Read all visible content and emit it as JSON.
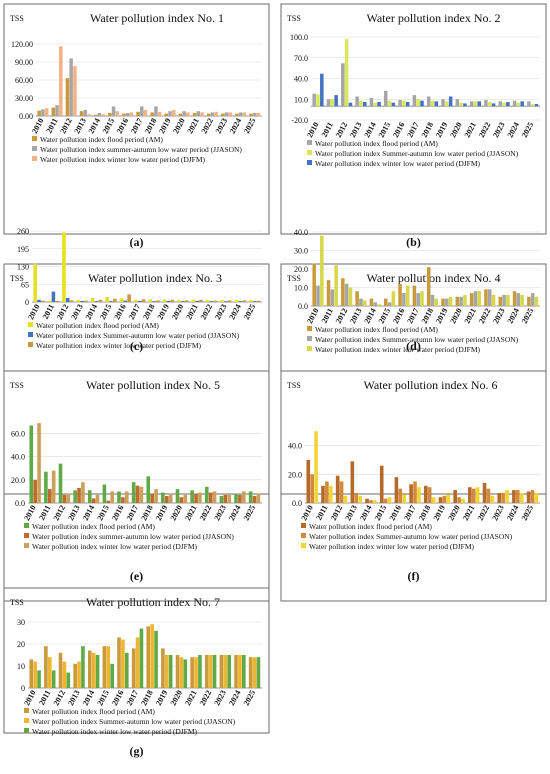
{
  "colors": {
    "panel_border": "#6b6b6b",
    "gridline": "#d9d9d9",
    "axis": "#7f7f7f"
  },
  "chart_data": [
    {
      "type": "bar",
      "panel_label": "(a)",
      "title": "Water pollution index No. 1",
      "ylabel": "TSS",
      "ylim": [
        0,
        120
      ],
      "yticks": [
        "0.00",
        "30.00",
        "60.00",
        "90.00",
        "120.00"
      ],
      "categories": [
        "2010",
        "2011",
        "2012",
        "2013",
        "2014",
        "2015",
        "2016",
        "2017",
        "2018",
        "2019",
        "2020",
        "2021",
        "2022",
        "2023",
        "2024",
        "2025"
      ],
      "series": [
        {
          "name": "Water pollution index flood period (AM)",
          "color": "#c89a3c",
          "values": [
            9,
            14,
            63,
            8,
            2,
            5,
            4,
            7,
            6,
            4,
            4,
            5,
            4,
            4,
            4,
            4
          ]
        },
        {
          "name": "Water pollution index summer-autumn low water period (JJASON)",
          "color": "#a6a6a6",
          "values": [
            11,
            18,
            96,
            10,
            5,
            16,
            5,
            16,
            16,
            8,
            8,
            8,
            6,
            6,
            6,
            5
          ]
        },
        {
          "name": "Water pollution index winter low water period (DJFM)",
          "color": "#f4b183",
          "values": [
            13,
            116,
            83,
            3,
            3,
            8,
            6,
            10,
            7,
            10,
            6,
            6,
            7,
            6,
            6,
            5
          ]
        }
      ]
    },
    {
      "type": "bar",
      "panel_label": "(b)",
      "title": "Water pollution index No. 2",
      "ylabel": "TSS",
      "ylim": [
        -20,
        100
      ],
      "yticks": [
        "-20.0",
        "10.0",
        "40.0",
        "70.0",
        "100.0"
      ],
      "categories": [
        "2010",
        "2011",
        "2012",
        "2013",
        "2014",
        "2015",
        "2016",
        "2017",
        "2018",
        "2019",
        "2020",
        "2021",
        "2022",
        "2023",
        "2024",
        "2025"
      ],
      "series": [
        {
          "name": "Water pollution index flood period (AM)",
          "color": "#a6a6a6",
          "values": [
            18,
            10,
            62,
            14,
            12,
            22,
            9,
            16,
            14,
            10,
            10,
            7,
            9,
            7,
            8,
            7
          ]
        },
        {
          "name": "Water pollution index Summer-autumn low water period (JJASON)",
          "color": "#d9e85a",
          "values": [
            17,
            10,
            97,
            8,
            5,
            8,
            8,
            10,
            8,
            7,
            5,
            7,
            6,
            5,
            5,
            3
          ]
        },
        {
          "name": "Water pollution index winter low water period (DJFM)",
          "color": "#4472c4",
          "values": [
            47,
            16,
            5,
            6,
            6,
            5,
            6,
            8,
            7,
            14,
            4,
            7,
            4,
            6,
            7,
            3
          ]
        }
      ]
    },
    {
      "type": "bar",
      "panel_label": "(c)",
      "title": "Water pollution index No. 3",
      "ylabel": "TSS",
      "ylim": [
        0,
        260
      ],
      "yticks": [
        "0",
        "65",
        "130",
        "195",
        "260"
      ],
      "categories": [
        "2010",
        "2011",
        "2012",
        "2013",
        "2014",
        "2015",
        "2016",
        "2017",
        "2018",
        "2019",
        "2020",
        "2021",
        "2022",
        "2023",
        "2024",
        "2025"
      ],
      "series": [
        {
          "name": "Water pollution index flood period (AM)",
          "color": "#e6e022",
          "values": [
            140,
            5,
            255,
            8,
            15,
            18,
            14,
            8,
            10,
            9,
            8,
            9,
            8,
            7,
            8,
            7
          ]
        },
        {
          "name": "Water pollution index Summer-autumn low water period (JJASON)",
          "color": "#4472c4",
          "values": [
            8,
            38,
            15,
            4,
            3,
            3,
            5,
            4,
            3,
            4,
            3,
            4,
            3,
            3,
            3,
            3
          ]
        },
        {
          "name": "Water pollution index winter low water period (DJFM)",
          "color": "#c89a3c",
          "values": [
            5,
            4,
            6,
            5,
            8,
            12,
            28,
            10,
            6,
            8,
            6,
            8,
            5,
            6,
            6,
            5
          ]
        }
      ]
    },
    {
      "type": "bar",
      "panel_label": "(d)",
      "title": "Water pollution index No. 4",
      "ylabel": "TSS",
      "ylim": [
        0,
        40
      ],
      "yticks": [
        "0.0",
        "10.0",
        "20.0",
        "30.0",
        "40.0"
      ],
      "categories": [
        "2010",
        "2011",
        "2012",
        "2013",
        "2014",
        "2015",
        "2016",
        "2017",
        "2018",
        "2019",
        "2020",
        "2021",
        "2022",
        "2023",
        "2024",
        "2025"
      ],
      "series": [
        {
          "name": "Water pollution index flood period (AM)",
          "color": "#c89a3c",
          "values": [
            23,
            14,
            15,
            8,
            4,
            4,
            12,
            11,
            21,
            4,
            5,
            7,
            9,
            5,
            8,
            5
          ]
        },
        {
          "name": "Water pollution index Summer-autumn low water period (JJASON)",
          "color": "#a6a6a6",
          "values": [
            11,
            9,
            12,
            4,
            2,
            2,
            7,
            7,
            6,
            4,
            5,
            8,
            9,
            6,
            7,
            7
          ]
        },
        {
          "name": "Water pollution index winter low water period (DJFM)",
          "color": "#d6d84a",
          "values": [
            38,
            22,
            10,
            3,
            1,
            8,
            11,
            8,
            4,
            5,
            6,
            8,
            6,
            6,
            6,
            5
          ]
        }
      ]
    },
    {
      "type": "bar",
      "panel_label": "(e)",
      "title": "Water pollution index No. 5",
      "ylabel": "TSS",
      "ylim": [
        0,
        70
      ],
      "yticks": [
        "0.0",
        "20.0",
        "40.0",
        "60.0"
      ],
      "categories": [
        "2010",
        "2011",
        "2012",
        "2013",
        "2014",
        "2015",
        "2016",
        "2017",
        "2018",
        "2019",
        "2020",
        "2021",
        "2022",
        "2023",
        "2024",
        "2025"
      ],
      "series": [
        {
          "name": "Water pollution index flood period (AM)",
          "color": "#5faa46",
          "values": [
            67,
            27,
            34,
            11,
            11,
            16,
            10,
            18,
            23,
            9,
            12,
            11,
            14,
            6,
            8,
            10
          ]
        },
        {
          "name": "Water pollution index summer-autumn low water period (JJASON)",
          "color": "#c0692c",
          "values": [
            20,
            12,
            7,
            13,
            4,
            2,
            5,
            15,
            8,
            6,
            5,
            8,
            9,
            7,
            7,
            6
          ]
        },
        {
          "name": "Water pollution index winter low water period (DJFM)",
          "color": "#c9a15a",
          "values": [
            69,
            28,
            8,
            18,
            7,
            10,
            10,
            14,
            12,
            8,
            7,
            9,
            10,
            7,
            10,
            8
          ]
        }
      ]
    },
    {
      "type": "bar",
      "panel_label": "(f)",
      "title": "Water pollution index No. 6",
      "ylabel": "TSS",
      "ylim": [
        0,
        55
      ],
      "yticks": [
        "0.0",
        "20.0",
        "40.0"
      ],
      "categories": [
        "2010",
        "2011",
        "2012",
        "2013",
        "2014",
        "2015",
        "2016",
        "2017",
        "2018",
        "2019",
        "2020",
        "2021",
        "2022",
        "2023",
        "2024",
        "2025"
      ],
      "series": [
        {
          "name": "Water pollution index flood period (AM)",
          "color": "#b56a2a",
          "values": [
            30,
            12,
            19,
            29,
            3,
            26,
            18,
            13,
            12,
            4,
            9,
            11,
            14,
            7,
            9,
            8
          ]
        },
        {
          "name": "Water pollution index Summer-autumn low water period (JJASON)",
          "color": "#d08a40",
          "values": [
            20,
            15,
            15,
            7,
            2,
            3,
            10,
            15,
            11,
            5,
            4,
            10,
            10,
            7,
            9,
            9
          ]
        },
        {
          "name": "Water pollution index winter low water period (DJFM)",
          "color": "#f2d534",
          "values": [
            50,
            12,
            5,
            5,
            2,
            4,
            6,
            11,
            4,
            6,
            3,
            11,
            5,
            9,
            7,
            7
          ]
        }
      ]
    },
    {
      "type": "bar",
      "panel_label": "(g)",
      "title": "Water pollution index No. 7",
      "ylabel": "TSS",
      "ylim": [
        0,
        30
      ],
      "yticks": [
        "0",
        "10",
        "20",
        "30"
      ],
      "categories": [
        "2010",
        "2011",
        "2012",
        "2013",
        "2014",
        "2015",
        "2016",
        "2017",
        "2018",
        "2019",
        "2020",
        "2021",
        "2022",
        "2023",
        "2024",
        "2025"
      ],
      "series": [
        {
          "name": "Water pollution index flood period (AM)",
          "color": "#c89a3c",
          "values": [
            13,
            19,
            16,
            11,
            17,
            19,
            23,
            18,
            28,
            18,
            15,
            14,
            15,
            15,
            15,
            14
          ]
        },
        {
          "name": "Water pollution index Summer-autumn low water period (JJASON)",
          "color": "#f0b530",
          "values": [
            12,
            14,
            12,
            12,
            16,
            19,
            22,
            23,
            29,
            15,
            14,
            14,
            15,
            15,
            15,
            14
          ]
        },
        {
          "name": "Water pollution index winter low water period (DJFM)",
          "color": "#5faa46",
          "values": [
            8,
            8,
            7,
            19,
            15,
            11,
            16,
            27,
            26,
            15,
            13,
            15,
            15,
            15,
            15,
            14
          ]
        }
      ]
    }
  ]
}
